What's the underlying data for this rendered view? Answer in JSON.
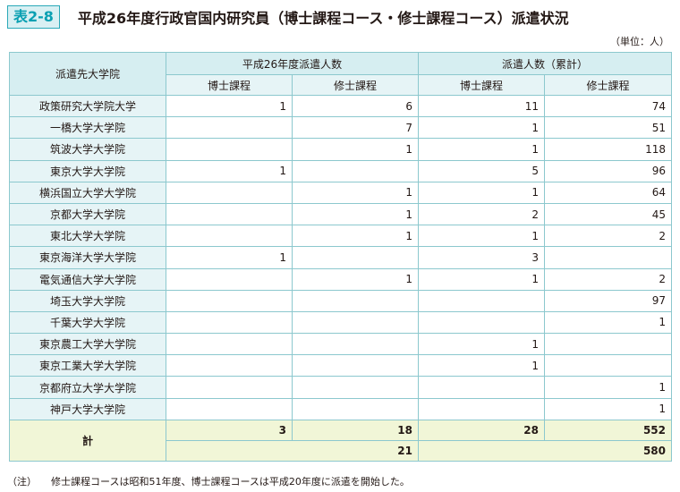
{
  "header": {
    "badge": "表2-8",
    "title": "平成26年度行政官国内研究員（博士課程コース・修士課程コース）派遣状況",
    "unit": "（単位：人）"
  },
  "table": {
    "col_university": "派遣先大学院",
    "group_fy": "平成26年度派遣人数",
    "group_cum": "派遣人数（累計）",
    "sub_doctor": "博士課程",
    "sub_master": "修士課程",
    "rows": [
      {
        "name": "政策研究大学院大学",
        "fy_d": "1",
        "fy_m": "6",
        "cum_d": "11",
        "cum_m": "74"
      },
      {
        "name": "一橋大学大学院",
        "fy_d": "",
        "fy_m": "7",
        "cum_d": "1",
        "cum_m": "51"
      },
      {
        "name": "筑波大学大学院",
        "fy_d": "",
        "fy_m": "1",
        "cum_d": "1",
        "cum_m": "118"
      },
      {
        "name": "東京大学大学院",
        "fy_d": "1",
        "fy_m": "",
        "cum_d": "5",
        "cum_m": "96"
      },
      {
        "name": "横浜国立大学大学院",
        "fy_d": "",
        "fy_m": "1",
        "cum_d": "1",
        "cum_m": "64"
      },
      {
        "name": "京都大学大学院",
        "fy_d": "",
        "fy_m": "1",
        "cum_d": "2",
        "cum_m": "45"
      },
      {
        "name": "東北大学大学院",
        "fy_d": "",
        "fy_m": "1",
        "cum_d": "1",
        "cum_m": "2"
      },
      {
        "name": "東京海洋大学大学院",
        "fy_d": "1",
        "fy_m": "",
        "cum_d": "3",
        "cum_m": ""
      },
      {
        "name": "電気通信大学大学院",
        "fy_d": "",
        "fy_m": "1",
        "cum_d": "1",
        "cum_m": "2"
      },
      {
        "name": "埼玉大学大学院",
        "fy_d": "",
        "fy_m": "",
        "cum_d": "",
        "cum_m": "97"
      },
      {
        "name": "千葉大学大学院",
        "fy_d": "",
        "fy_m": "",
        "cum_d": "",
        "cum_m": "1"
      },
      {
        "name": "東京農工大学大学院",
        "fy_d": "",
        "fy_m": "",
        "cum_d": "1",
        "cum_m": ""
      },
      {
        "name": "東京工業大学大学院",
        "fy_d": "",
        "fy_m": "",
        "cum_d": "1",
        "cum_m": ""
      },
      {
        "name": "京都府立大学大学院",
        "fy_d": "",
        "fy_m": "",
        "cum_d": "",
        "cum_m": "1"
      },
      {
        "name": "神戸大学大学院",
        "fy_d": "",
        "fy_m": "",
        "cum_d": "",
        "cum_m": "1"
      }
    ],
    "total": {
      "label": "計",
      "fy_d": "3",
      "fy_m": "18",
      "cum_d": "28",
      "cum_m": "552",
      "fy_sum": "21",
      "cum_sum": "580"
    }
  },
  "note": {
    "tag": "（注）",
    "text": "修士課程コースは昭和51年度、博士課程コースは平成20年度に派遣を開始した。"
  }
}
